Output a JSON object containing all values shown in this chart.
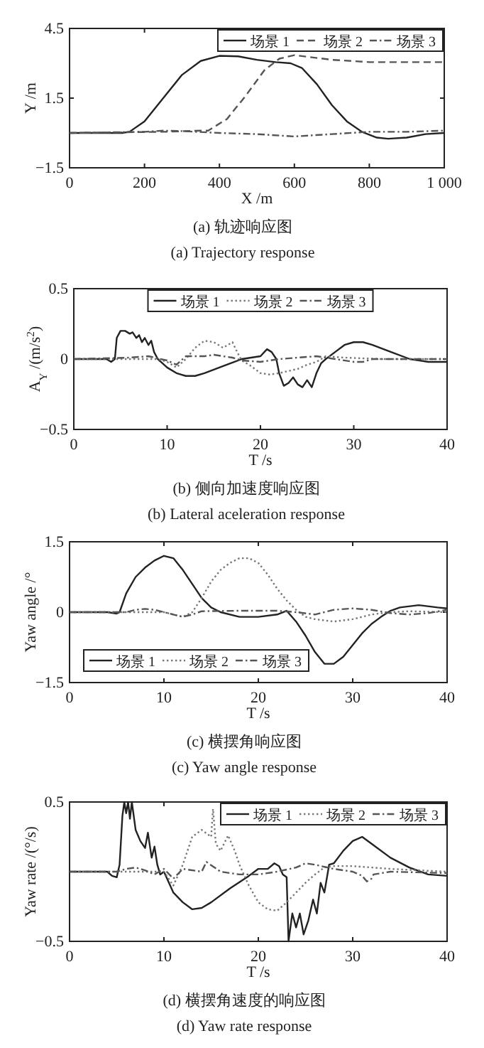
{
  "chart_data": [
    {
      "type": "line",
      "title": "(a) 轨迹响应图",
      "subtitle": "(a) Trajectory response",
      "xlabel": "X /m",
      "ylabel": "Y /m",
      "xlim": [
        0,
        1000
      ],
      "ylim": [
        -1.5,
        4.5
      ],
      "xticks": [
        0,
        200,
        400,
        600,
        800,
        {
          "value": 1000,
          "label": "1 000"
        }
      ],
      "yticks": [
        -1.5,
        1.5,
        4.5
      ],
      "legend": "top right",
      "series": [
        {
          "name": "场景 1",
          "color": "#222222",
          "line_style": "solid",
          "x": [
            0,
            140,
            160,
            200,
            250,
            300,
            350,
            400,
            450,
            500,
            550,
            590,
            620,
            660,
            700,
            740,
            780,
            820,
            850,
            900,
            950,
            1000
          ],
          "values": [
            0,
            0,
            0.05,
            0.5,
            1.5,
            2.5,
            3.1,
            3.32,
            3.3,
            3.15,
            3.05,
            3.0,
            2.8,
            2.1,
            1.2,
            0.5,
            0.05,
            -0.2,
            -0.25,
            -0.2,
            -0.05,
            0
          ]
        },
        {
          "name": "场景 2",
          "color": "#555555",
          "line_style": "dashed",
          "x": [
            0,
            250,
            350,
            370,
            420,
            470,
            520,
            560,
            600,
            650,
            700,
            800,
            900,
            1000
          ],
          "values": [
            0,
            0.05,
            0.1,
            0.1,
            0.6,
            1.6,
            2.7,
            3.2,
            3.35,
            3.25,
            3.15,
            3.05,
            3.05,
            3.05
          ]
        },
        {
          "name": "场景 3",
          "color": "#555555",
          "line_style": "dashdot",
          "x": [
            0,
            200,
            250,
            300,
            400,
            500,
            600,
            700,
            800,
            900,
            1000
          ],
          "values": [
            0,
            0.05,
            0.1,
            0.08,
            0,
            -0.05,
            -0.15,
            -0.05,
            0.05,
            0.05,
            0.1
          ]
        }
      ]
    },
    {
      "type": "line",
      "title": "(b) 侧向加速度响应图",
      "subtitle": "(b) Lateral aceleration response",
      "xlabel": "T /s",
      "ylabel": "A$_{Y}$ /(m/s$^{2}$)",
      "xlim": [
        0,
        40
      ],
      "ylim": [
        -0.5,
        0.5
      ],
      "xticks": [
        0,
        10,
        20,
        30,
        40
      ],
      "yticks": [
        -0.5,
        0,
        0.5
      ],
      "legend": "top",
      "series": [
        {
          "name": "场景 1",
          "color": "#222222",
          "line_style": "solid",
          "x": [
            0,
            3.5,
            4,
            4.4,
            4.6,
            5,
            5.5,
            6,
            6.3,
            6.7,
            7,
            7.3,
            7.6,
            8,
            8.3,
            8.6,
            9,
            10,
            11,
            12,
            13,
            14,
            16,
            18,
            20,
            20.7,
            21.2,
            21.7,
            22,
            22.5,
            23,
            23.5,
            24,
            24.5,
            25,
            25.5,
            26,
            26.5,
            27,
            28,
            29,
            30,
            31,
            32,
            34,
            36,
            38,
            40
          ],
          "values": [
            0,
            0,
            -0.02,
            0,
            0.15,
            0.2,
            0.2,
            0.18,
            0.19,
            0.15,
            0.17,
            0.12,
            0.15,
            0.1,
            0.13,
            0.05,
            0,
            -0.06,
            -0.1,
            -0.12,
            -0.12,
            -0.1,
            -0.05,
            0,
            0.02,
            0.07,
            0.05,
            0,
            -0.1,
            -0.19,
            -0.17,
            -0.13,
            -0.18,
            -0.2,
            -0.15,
            -0.2,
            -0.1,
            -0.03,
            0,
            0.05,
            0.1,
            0.12,
            0.12,
            0.1,
            0.05,
            0,
            -0.02,
            -0.02
          ]
        },
        {
          "name": "场景 2",
          "color": "#777777",
          "line_style": "dotted",
          "x": [
            0,
            9,
            10,
            11,
            12,
            13,
            14,
            15,
            16,
            17,
            17.5,
            18,
            19,
            20,
            21,
            22,
            24,
            25,
            26,
            27,
            29,
            33,
            40
          ],
          "values": [
            0,
            0,
            -0.02,
            -0.06,
            0,
            0.08,
            0.13,
            0.12,
            0.08,
            0.12,
            0.05,
            -0.01,
            -0.05,
            -0.1,
            -0.11,
            -0.1,
            -0.07,
            -0.04,
            -0.02,
            0.02,
            0.01,
            0,
            0
          ]
        },
        {
          "name": "场景 3",
          "color": "#555555",
          "line_style": "dashdot",
          "x": [
            0,
            6,
            8,
            10,
            11,
            12,
            14,
            15,
            16,
            17,
            18,
            20,
            22,
            24,
            26,
            28,
            30,
            31,
            32,
            40
          ],
          "values": [
            0,
            0.01,
            0.02,
            -0.01,
            -0.04,
            0.02,
            0.02,
            0.03,
            0.02,
            0.01,
            -0.01,
            -0.02,
            0,
            0.01,
            0.02,
            0,
            -0.02,
            -0.02,
            0,
            0
          ]
        }
      ]
    },
    {
      "type": "line",
      "title": "(c) 横摆角响应图",
      "subtitle": "(c) Yaw angle response",
      "xlabel": "T /s",
      "ylabel": "Yaw angle /°",
      "xlim": [
        0,
        40
      ],
      "ylim": [
        -1.5,
        1.5
      ],
      "xticks": [
        0,
        10,
        20,
        30,
        40
      ],
      "yticks": [
        -1.5,
        0,
        1.5
      ],
      "legend": "bottom left",
      "series": [
        {
          "name": "场景 1",
          "color": "#222222",
          "line_style": "solid",
          "x": [
            0,
            4,
            5,
            5.3,
            6,
            7,
            8,
            9,
            10,
            11,
            12,
            13,
            14,
            15,
            16,
            18,
            20,
            22,
            23,
            24,
            25,
            26,
            27,
            28,
            29,
            30,
            31,
            32,
            33,
            34,
            35,
            37,
            39,
            40
          ],
          "values": [
            0,
            0,
            -0.03,
            0,
            0.4,
            0.75,
            0.95,
            1.1,
            1.2,
            1.15,
            0.9,
            0.6,
            0.3,
            0.1,
            0,
            -0.1,
            -0.1,
            -0.05,
            0.03,
            -0.2,
            -0.5,
            -0.85,
            -1.1,
            -1.1,
            -0.95,
            -0.7,
            -0.45,
            -0.25,
            -0.1,
            0.03,
            0.1,
            0.15,
            0.1,
            0.08
          ]
        },
        {
          "name": "场景 2",
          "color": "#777777",
          "line_style": "dotted",
          "x": [
            0,
            10,
            11,
            12,
            13,
            14,
            15,
            16,
            17,
            18,
            19,
            20,
            21,
            22,
            23,
            24,
            25,
            26,
            28,
            30,
            32,
            34,
            36,
            40
          ],
          "values": [
            0,
            0,
            -0.05,
            -0.1,
            0,
            0.3,
            0.65,
            0.9,
            1.05,
            1.15,
            1.15,
            1.05,
            0.8,
            0.5,
            0.25,
            0.05,
            -0.1,
            -0.15,
            -0.2,
            -0.15,
            -0.05,
            0,
            0.02,
            0
          ]
        },
        {
          "name": "场景 3",
          "color": "#555555",
          "line_style": "dashdot",
          "x": [
            0,
            6,
            7,
            8,
            9,
            10,
            11,
            12,
            13,
            14,
            18,
            22,
            24,
            26,
            28,
            30,
            32,
            34,
            36,
            38,
            40
          ],
          "values": [
            0,
            0,
            0.05,
            0.07,
            0.05,
            0,
            -0.05,
            -0.1,
            -0.05,
            0.02,
            0.03,
            0.03,
            0,
            -0.05,
            0.05,
            0.08,
            0.05,
            -0.02,
            -0.05,
            -0.02,
            0.05
          ]
        }
      ]
    },
    {
      "type": "line",
      "title": "(d) 横摆角速度的响应图",
      "subtitle": "(d) Yaw rate response",
      "xlabel": "T /s",
      "ylabel": "Yaw rate /(°/s)",
      "xlim": [
        0,
        40
      ],
      "ylim": [
        -0.5,
        0.5
      ],
      "xticks": [
        0,
        10,
        20,
        30,
        40
      ],
      "yticks": [
        -0.5,
        0.5
      ],
      "legend": "top right",
      "series": [
        {
          "name": "场景 1",
          "color": "#222222",
          "line_style": "solid",
          "x": [
            0,
            4,
            4.5,
            5,
            5.3,
            5.6,
            5.8,
            6,
            6.2,
            6.4,
            6.6,
            7,
            7.5,
            8,
            8.3,
            8.7,
            9,
            9.3,
            9.6,
            10,
            11,
            12,
            13,
            14,
            15,
            17,
            19,
            20,
            21,
            21.7,
            22.2,
            22.6,
            23,
            23.2,
            23.6,
            24,
            24.4,
            24.8,
            25.3,
            25.8,
            26.2,
            26.6,
            27,
            27.5,
            28,
            29,
            30,
            31,
            32,
            34,
            36,
            38,
            40
          ],
          "values": [
            0,
            0,
            -0.03,
            -0.04,
            0.05,
            0.4,
            0.5,
            0.42,
            0.5,
            0.38,
            0.5,
            0.3,
            0.22,
            0.17,
            0.28,
            0.1,
            0.18,
            0.05,
            -0.02,
            0,
            -0.15,
            -0.22,
            -0.27,
            -0.26,
            -0.22,
            -0.12,
            -0.03,
            0.02,
            0.02,
            0.06,
            0.04,
            -0.02,
            -0.04,
            -0.5,
            -0.3,
            -0.4,
            -0.3,
            -0.45,
            -0.35,
            -0.2,
            -0.3,
            -0.08,
            -0.15,
            0.05,
            0.06,
            0.15,
            0.22,
            0.25,
            0.2,
            0.1,
            0.03,
            -0.02,
            -0.03
          ]
        },
        {
          "name": "场景 2",
          "color": "#777777",
          "line_style": "dotted",
          "x": [
            0,
            10,
            11,
            12,
            13,
            14,
            15,
            15.2,
            15.5,
            16,
            16.8,
            17.5,
            18,
            19,
            20,
            21,
            22,
            23,
            24,
            25,
            26,
            27,
            28,
            30,
            32,
            34,
            40
          ],
          "values": [
            0,
            0,
            -0.1,
            0.05,
            0.25,
            0.3,
            0.25,
            0.45,
            0.2,
            0.15,
            0.26,
            0.15,
            0.05,
            -0.1,
            -0.22,
            -0.27,
            -0.28,
            -0.22,
            -0.15,
            -0.08,
            -0.02,
            0.03,
            0.04,
            0.04,
            0.03,
            0.02,
            0
          ]
        },
        {
          "name": "场景 3",
          "color": "#555555",
          "line_style": "dashdot",
          "x": [
            0,
            5,
            6,
            7,
            8,
            9,
            10,
            11,
            12,
            14,
            14.5,
            16,
            18,
            20,
            22,
            24,
            25,
            26,
            28,
            30,
            31,
            31.5,
            32,
            32.2,
            34,
            40
          ],
          "values": [
            0,
            0,
            0.02,
            0.03,
            0.01,
            -0.02,
            0.02,
            -0.05,
            0.02,
            0,
            0.07,
            0,
            -0.02,
            -0.02,
            0,
            0.03,
            0.06,
            0.05,
            0.02,
            0,
            -0.03,
            -0.07,
            -0.05,
            -0.02,
            0,
            -0.01
          ]
        }
      ]
    }
  ]
}
